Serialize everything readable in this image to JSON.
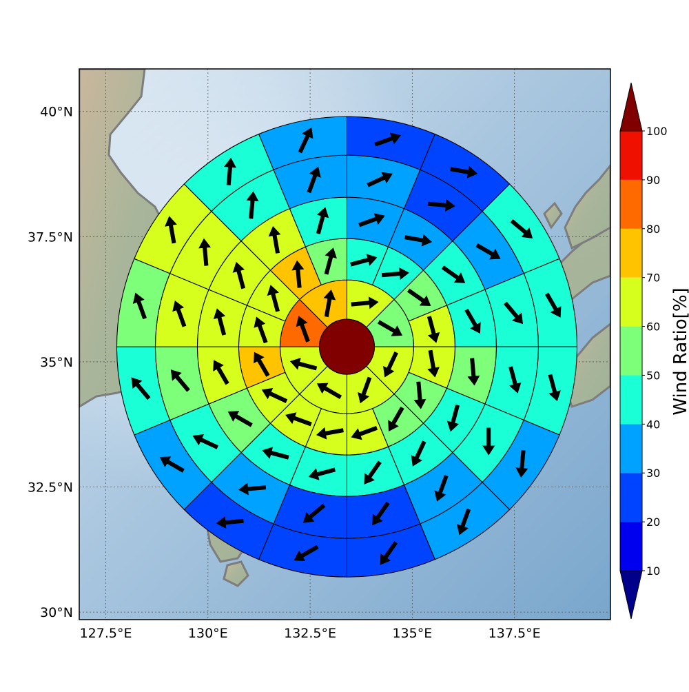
{
  "map": {
    "lon_range": [
      126.85,
      139.85
    ],
    "lat_range": [
      29.85,
      40.85
    ],
    "center": {
      "lon": 133.4,
      "lat": 35.3
    },
    "gridlines": true
  },
  "axes": {
    "x_ticks": [
      {
        "value": 127.5,
        "label": "127.5°E"
      },
      {
        "value": 130.0,
        "label": "130°E"
      },
      {
        "value": 132.5,
        "label": "132.5°E"
      },
      {
        "value": 135.0,
        "label": "135°E"
      },
      {
        "value": 137.5,
        "label": "137.5°E"
      }
    ],
    "y_ticks": [
      {
        "value": 30.0,
        "label": "30°N"
      },
      {
        "value": 32.5,
        "label": "32.5°N"
      },
      {
        "value": 35.0,
        "label": "35°N"
      },
      {
        "value": 37.5,
        "label": "37.5°N"
      },
      {
        "value": 40.0,
        "label": "40°N"
      }
    ]
  },
  "colorbar": {
    "title": "Wind Ratio[%]",
    "ticks": [
      "10",
      "20",
      "30",
      "40",
      "50",
      "60",
      "70",
      "80",
      "90",
      "100"
    ],
    "colors": [
      "#00008b",
      "#0000ee",
      "#0044ff",
      "#00a2ff",
      "#1affd5",
      "#7dff7a",
      "#d6ff1e",
      "#ffc300",
      "#ff6a00",
      "#f01000",
      "#800000"
    ],
    "range": [
      0,
      110
    ]
  },
  "chart_data": {
    "type": "polar_sector_map",
    "variable": "Wind Ratio[%]",
    "center_value": 100,
    "rings": [
      {
        "ring": 1,
        "sectors": 8,
        "values": [
          65,
          55,
          60,
          60,
          60,
          60,
          80,
          75
        ],
        "arrow_bearings_deg": [
          85,
          120,
          205,
          200,
          300,
          285,
          340,
          10
        ]
      },
      {
        "ring": 2,
        "sectors": 16,
        "values": [
          45,
          45,
          50,
          60,
          60,
          55,
          55,
          60,
          60,
          60,
          60,
          75,
          65,
          60,
          75,
          55
        ],
        "arrow_bearings_deg": [
          75,
          85,
          125,
          165,
          170,
          175,
          210,
          250,
          260,
          290,
          295,
          330,
          340,
          345,
          355,
          15
        ]
      },
      {
        "ring": 3,
        "sectors": 16,
        "values": [
          35,
          35,
          45,
          45,
          55,
          45,
          45,
          45,
          45,
          45,
          55,
          60,
          60,
          65,
          65,
          45
        ],
        "arrow_bearings_deg": [
          70,
          100,
          125,
          150,
          175,
          195,
          205,
          215,
          255,
          285,
          300,
          330,
          345,
          345,
          350,
          15
        ]
      },
      {
        "ring": 4,
        "sectors": 16,
        "values": [
          35,
          25,
          35,
          45,
          45,
          45,
          35,
          25,
          25,
          35,
          45,
          55,
          65,
          65,
          45,
          35
        ],
        "arrow_bearings_deg": [
          65,
          95,
          120,
          140,
          165,
          180,
          200,
          215,
          230,
          265,
          295,
          320,
          340,
          355,
          5,
          20
        ]
      },
      {
        "ring": 5,
        "sectors": 16,
        "values": [
          25,
          25,
          45,
          45,
          45,
          35,
          35,
          25,
          25,
          25,
          35,
          45,
          55,
          65,
          45,
          35
        ],
        "arrow_bearings_deg": [
          70,
          100,
          130,
          150,
          165,
          185,
          200,
          215,
          240,
          265,
          300,
          320,
          340,
          350,
          5,
          25
        ]
      }
    ]
  }
}
